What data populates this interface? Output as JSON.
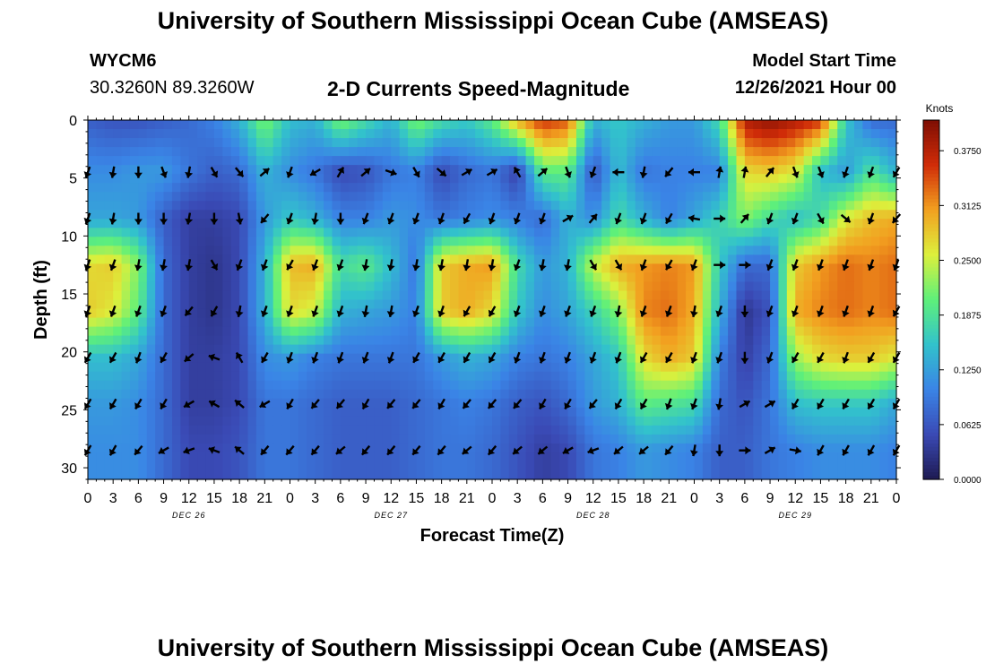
{
  "header": {
    "title": "University of Southern Mississippi Ocean Cube (AMSEAS)",
    "station_id": "WYCM6",
    "station_coords": "30.3260N  89.3260W",
    "subtitle": "2-D Currents Speed-Magnitude",
    "model_label": "Model Start Time",
    "model_start": "12/26/2021 Hour 00"
  },
  "footer": {
    "title": "University of Southern Mississippi Ocean Cube (AMSEAS)"
  },
  "chart_data": {
    "type": "heatmap",
    "title": "2-D Currents Speed-Magnitude",
    "xlabel": "Forecast Time(Z)",
    "ylabel": "Depth (ft)",
    "x_tick_labels": [
      "0",
      "3",
      "6",
      "9",
      "12",
      "15",
      "18",
      "21",
      "0",
      "3",
      "6",
      "9",
      "12",
      "15",
      "18",
      "21",
      "0",
      "3",
      "6",
      "9",
      "12",
      "15",
      "18",
      "21",
      "0",
      "3",
      "6",
      "9",
      "12",
      "15",
      "18",
      "21",
      "0"
    ],
    "x_range_hours": [
      0,
      96
    ],
    "date_labels": [
      {
        "label": "DEC 26",
        "hour": 12
      },
      {
        "label": "DEC 27",
        "hour": 36
      },
      {
        "label": "DEC 28",
        "hour": 60
      },
      {
        "label": "DEC 29",
        "hour": 84
      }
    ],
    "y_ticks": [
      0,
      5,
      10,
      15,
      20,
      25,
      30
    ],
    "y_range_ft": [
      0,
      31
    ],
    "colorbar": {
      "title": "Knots",
      "tick_labels": [
        "0.0000",
        "0.0625",
        "0.1250",
        "0.1875",
        "0.2500",
        "0.3125",
        "0.3750"
      ],
      "range": [
        0,
        0.41
      ]
    },
    "depths_ft": [
      0,
      4.5,
      8.5,
      12.5,
      16.5,
      20.5,
      24.5,
      28.5
    ],
    "hours": [
      0,
      3,
      6,
      9,
      12,
      15,
      18,
      21,
      24,
      27,
      30,
      33,
      36,
      39,
      42,
      45,
      48,
      51,
      54,
      57,
      60,
      63,
      66,
      69,
      72,
      75,
      78,
      81,
      84,
      87,
      90,
      93,
      96
    ],
    "speed_knots": [
      [
        0.07,
        0.06,
        0.06,
        0.07,
        0.08,
        0.1,
        0.14,
        0.22,
        0.15,
        0.14,
        0.22,
        0.18,
        0.14,
        0.22,
        0.18,
        0.16,
        0.2,
        0.3,
        0.36,
        0.34,
        0.14,
        0.16,
        0.14,
        0.12,
        0.12,
        0.18,
        0.38,
        0.4,
        0.38,
        0.36,
        0.16,
        0.08,
        0.08
      ],
      [
        0.11,
        0.11,
        0.12,
        0.12,
        0.09,
        0.07,
        0.08,
        0.14,
        0.11,
        0.09,
        0.05,
        0.06,
        0.09,
        0.1,
        0.05,
        0.08,
        0.09,
        0.04,
        0.2,
        0.2,
        0.06,
        0.15,
        0.09,
        0.1,
        0.1,
        0.1,
        0.27,
        0.28,
        0.26,
        0.15,
        0.12,
        0.19,
        0.14
      ],
      [
        0.13,
        0.13,
        0.12,
        0.07,
        0.04,
        0.04,
        0.05,
        0.12,
        0.16,
        0.14,
        0.1,
        0.1,
        0.12,
        0.11,
        0.09,
        0.1,
        0.11,
        0.1,
        0.08,
        0.14,
        0.11,
        0.18,
        0.14,
        0.1,
        0.13,
        0.17,
        0.22,
        0.18,
        0.15,
        0.18,
        0.26,
        0.29,
        0.3
      ],
      [
        0.27,
        0.28,
        0.22,
        0.08,
        0.04,
        0.03,
        0.05,
        0.14,
        0.29,
        0.3,
        0.18,
        0.2,
        0.15,
        0.09,
        0.28,
        0.3,
        0.31,
        0.18,
        0.12,
        0.14,
        0.25,
        0.3,
        0.31,
        0.32,
        0.31,
        0.16,
        0.08,
        0.08,
        0.28,
        0.31,
        0.33,
        0.32,
        0.33
      ],
      [
        0.28,
        0.26,
        0.2,
        0.08,
        0.04,
        0.03,
        0.05,
        0.14,
        0.27,
        0.25,
        0.14,
        0.13,
        0.12,
        0.1,
        0.28,
        0.3,
        0.27,
        0.16,
        0.11,
        0.13,
        0.17,
        0.22,
        0.32,
        0.33,
        0.3,
        0.14,
        0.03,
        0.06,
        0.3,
        0.32,
        0.33,
        0.32,
        0.33
      ],
      [
        0.15,
        0.15,
        0.13,
        0.08,
        0.04,
        0.04,
        0.05,
        0.11,
        0.12,
        0.1,
        0.09,
        0.09,
        0.09,
        0.09,
        0.12,
        0.14,
        0.13,
        0.1,
        0.09,
        0.1,
        0.13,
        0.16,
        0.27,
        0.3,
        0.28,
        0.1,
        0.04,
        0.08,
        0.23,
        0.27,
        0.28,
        0.28,
        0.26
      ],
      [
        0.12,
        0.12,
        0.11,
        0.08,
        0.04,
        0.04,
        0.05,
        0.09,
        0.09,
        0.08,
        0.07,
        0.07,
        0.07,
        0.08,
        0.09,
        0.1,
        0.09,
        0.07,
        0.06,
        0.08,
        0.12,
        0.14,
        0.2,
        0.19,
        0.18,
        0.08,
        0.06,
        0.09,
        0.15,
        0.16,
        0.16,
        0.16,
        0.13
      ],
      [
        0.11,
        0.11,
        0.11,
        0.08,
        0.05,
        0.05,
        0.06,
        0.09,
        0.09,
        0.08,
        0.07,
        0.07,
        0.07,
        0.08,
        0.09,
        0.09,
        0.08,
        0.06,
        0.04,
        0.05,
        0.09,
        0.1,
        0.12,
        0.11,
        0.1,
        0.07,
        0.07,
        0.09,
        0.1,
        0.11,
        0.11,
        0.11,
        0.1
      ]
    ],
    "arrow_depths_ft": [
      4.5,
      8.5,
      12.5,
      16.5,
      20.5,
      24.5,
      28.5
    ],
    "arrow_hours": [
      0,
      3,
      6,
      9,
      12,
      15,
      18,
      21,
      24,
      27,
      30,
      33,
      36,
      39,
      42,
      45,
      48,
      51,
      54,
      57,
      60,
      63,
      66,
      69,
      72,
      75,
      78,
      81,
      84,
      87,
      90,
      93,
      96
    ],
    "arrow_direction_deg": [
      [
        200,
        190,
        180,
        160,
        190,
        150,
        140,
        50,
        200,
        240,
        30,
        50,
        110,
        150,
        130,
        60,
        60,
        330,
        50,
        160,
        200,
        270,
        190,
        220,
        270,
        10,
        10,
        40,
        160,
        160,
        200,
        200,
        210
      ],
      [
        200,
        190,
        180,
        180,
        190,
        180,
        170,
        220,
        200,
        190,
        180,
        200,
        200,
        200,
        200,
        210,
        200,
        200,
        200,
        60,
        40,
        200,
        200,
        210,
        280,
        90,
        40,
        200,
        200,
        150,
        130,
        200,
        220
      ],
      [
        200,
        200,
        190,
        190,
        190,
        150,
        200,
        200,
        210,
        200,
        200,
        190,
        190,
        190,
        190,
        190,
        190,
        200,
        190,
        190,
        150,
        150,
        200,
        210,
        200,
        90,
        90,
        200,
        200,
        200,
        200,
        200,
        200
      ],
      [
        200,
        200,
        200,
        200,
        220,
        210,
        190,
        200,
        200,
        200,
        200,
        190,
        190,
        200,
        200,
        210,
        210,
        200,
        200,
        200,
        200,
        190,
        200,
        200,
        190,
        200,
        180,
        200,
        200,
        200,
        200,
        200,
        210
      ],
      [
        210,
        210,
        200,
        210,
        230,
        290,
        330,
        210,
        200,
        200,
        200,
        200,
        200,
        210,
        210,
        210,
        210,
        200,
        200,
        200,
        200,
        200,
        210,
        210,
        200,
        200,
        180,
        200,
        210,
        210,
        200,
        210,
        210
      ],
      [
        210,
        210,
        210,
        210,
        240,
        300,
        310,
        240,
        210,
        220,
        220,
        210,
        220,
        220,
        210,
        220,
        220,
        220,
        210,
        210,
        220,
        210,
        210,
        200,
        200,
        190,
        60,
        60,
        210,
        210,
        210,
        210,
        210
      ],
      [
        210,
        210,
        220,
        240,
        250,
        290,
        310,
        220,
        220,
        220,
        230,
        220,
        220,
        220,
        220,
        230,
        220,
        230,
        230,
        240,
        250,
        230,
        230,
        220,
        190,
        180,
        90,
        60,
        100,
        210,
        210,
        210,
        210
      ]
    ]
  },
  "colors": {
    "background": "#ffffff",
    "arrow": "#000000",
    "colormap": [
      "#1e1a52",
      "#3a4ab5",
      "#3a84e6",
      "#32c2cc",
      "#5ef07a",
      "#dcf03c",
      "#f2a020",
      "#d02c08",
      "#7e0e04"
    ]
  }
}
